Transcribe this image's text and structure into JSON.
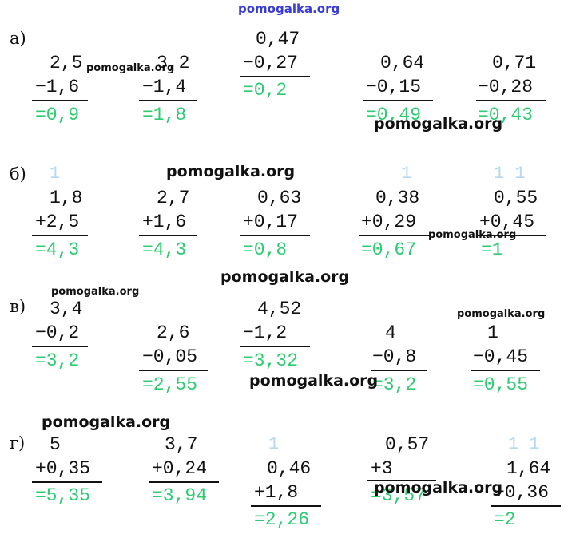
{
  "watermark": {
    "text": "pomogalka.org"
  },
  "sections": [
    {
      "label": "а)",
      "problems": [
        {
          "a": "2,5",
          "b": "−1,6",
          "r": "=0,9"
        },
        {
          "a": "3,2",
          "b": "−1,4",
          "r": "=1,8"
        },
        {
          "a": "0,47",
          "b": "−0,27",
          "r": "=0,2"
        },
        {
          "a": "0,64",
          "b": "−0,15",
          "r": "=0,49"
        },
        {
          "a": "0,71",
          "b": "−0,28",
          "r": "=0,43"
        }
      ]
    },
    {
      "label": "б)",
      "problems": [
        {
          "a": "1,8",
          "b": "+2,5",
          "r": "=4,3"
        },
        {
          "a": "2,7",
          "b": "+1,6",
          "r": "=4,3"
        },
        {
          "a": "0,63",
          "b": "+0,17",
          "r": "=0,8"
        },
        {
          "a": "0,38",
          "b": "+0,29",
          "r": "=0,67"
        },
        {
          "a": "0,55",
          "b": "+0,45",
          "r": "=1"
        }
      ]
    },
    {
      "label": "в)",
      "problems": [
        {
          "a": "3,4",
          "b": "−0,2",
          "r": "=3,2"
        },
        {
          "a": "2,6",
          "b": "−0,05",
          "r": "=2,55"
        },
        {
          "a": "4,52",
          "b": "−1,2",
          "r": "=3,32"
        },
        {
          "a": "4",
          "b": "−0,8",
          "r": "=3,2"
        },
        {
          "a": "1",
          "b": "−0,45",
          "r": "=0,55"
        }
      ]
    },
    {
      "label": "г)",
      "problems": [
        {
          "a": "5",
          "b": "+0,35",
          "r": "=5,35"
        },
        {
          "a": "3,7",
          "b": "+0,24",
          "r": "=3,94"
        },
        {
          "a": "0,46",
          "b": "+1,8",
          "r": "=2,26"
        },
        {
          "a": "0,57",
          "b": "+3",
          "r": "=3,57"
        },
        {
          "a": "1,64",
          "b": "+0,36",
          "r": "=2"
        }
      ]
    }
  ],
  "colors": {
    "result": "#2ecc71",
    "watermark_top": "#3b3bd6",
    "carry": "#b7d9ef"
  }
}
